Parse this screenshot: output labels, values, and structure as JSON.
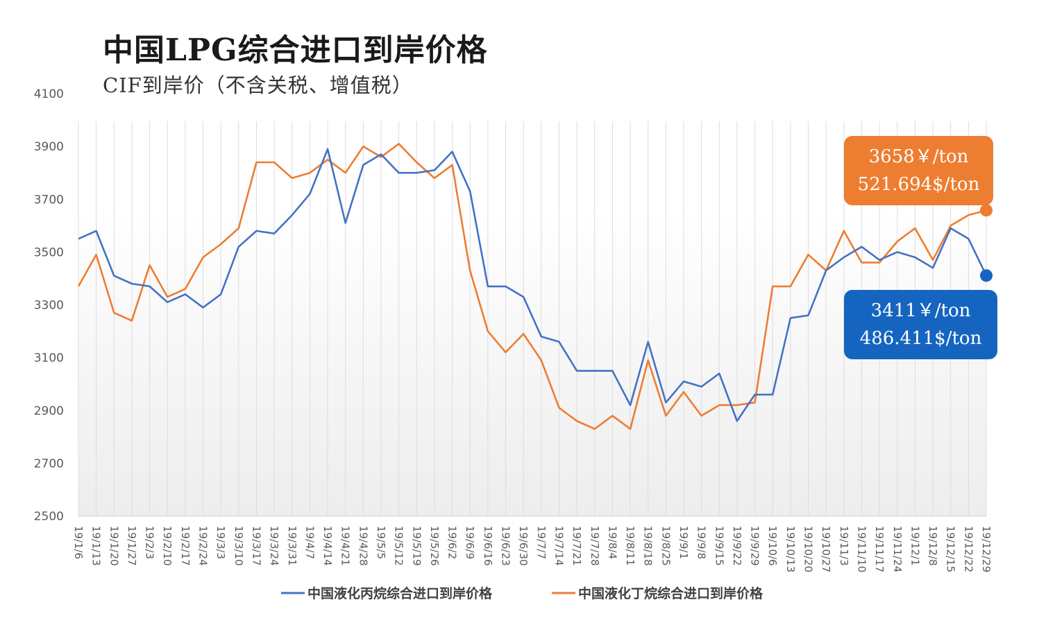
{
  "title": "中国LPG综合进口到岸价格",
  "subtitle": "CIF到岸价（不含关税、增值税）",
  "chart_data": {
    "type": "line",
    "title": "中国LPG综合进口到岸价格",
    "subtitle": "CIF到岸价（不含关税、增值税）",
    "xlabel": "",
    "ylabel": "",
    "ylim": [
      2500,
      4100
    ],
    "yticks": [
      2500,
      2700,
      2900,
      3100,
      3300,
      3500,
      3700,
      3900,
      4100
    ],
    "grid": "vertical",
    "legend_position": "bottom",
    "categories": [
      "19/1/6",
      "19/1/13",
      "19/1/20",
      "19/1/27",
      "19/2/3",
      "19/2/10",
      "19/2/17",
      "19/2/24",
      "19/3/3",
      "19/3/10",
      "19/3/17",
      "19/3/24",
      "19/3/31",
      "19/4/7",
      "19/4/14",
      "19/4/21",
      "19/4/28",
      "19/5/5",
      "19/5/12",
      "19/5/19",
      "19/5/26",
      "19/6/2",
      "19/6/9",
      "19/6/16",
      "19/6/23",
      "19/6/30",
      "19/7/7",
      "19/7/14",
      "19/7/21",
      "19/7/28",
      "19/8/4",
      "19/8/11",
      "19/8/18",
      "19/8/25",
      "19/9/1",
      "19/9/8",
      "19/9/15",
      "19/9/22",
      "19/9/29",
      "19/10/6",
      "19/10/13",
      "19/10/20",
      "19/10/27",
      "19/11/3",
      "19/11/10",
      "19/11/17",
      "19/11/24",
      "19/12/1",
      "19/12/8",
      "19/12/15",
      "19/12/22",
      "19/12/29"
    ],
    "series": [
      {
        "name": "中国液化丙烷综合进口到岸价格",
        "color": "#4472C4",
        "values": [
          3550,
          3580,
          3410,
          3380,
          3370,
          3310,
          3340,
          3290,
          3340,
          3520,
          3580,
          3570,
          3640,
          3720,
          3890,
          3610,
          3830,
          3870,
          3800,
          3800,
          3810,
          3880,
          3730,
          3370,
          3370,
          3330,
          3180,
          3160,
          3050,
          3050,
          3050,
          2920,
          3160,
          2930,
          3010,
          2990,
          3040,
          2860,
          2960,
          2960,
          3250,
          3260,
          3430,
          3480,
          3520,
          3470,
          3500,
          3480,
          3440,
          3590,
          3550,
          3411
        ]
      },
      {
        "name": "中国液化丁烷综合进口到岸价格",
        "color": "#ED7D31",
        "values": [
          3370,
          3490,
          3270,
          3240,
          3450,
          3330,
          3360,
          3480,
          3530,
          3590,
          3840,
          3840,
          3780,
          3800,
          3850,
          3800,
          3900,
          3860,
          3910,
          3840,
          3780,
          3830,
          3430,
          3200,
          3120,
          3190,
          3090,
          2910,
          2860,
          2830,
          2880,
          2830,
          3090,
          2880,
          2970,
          2880,
          2920,
          2920,
          2930,
          3370,
          3370,
          3490,
          3430,
          3580,
          3460,
          3460,
          3540,
          3590,
          3470,
          3600,
          3640,
          3658
        ]
      }
    ],
    "annotations": [
      {
        "series": "中国液化丁烷综合进口到岸价格",
        "color": "#ED7D31",
        "line1": "3658￥/ton",
        "line2": "521.694$/ton"
      },
      {
        "series": "中国液化丙烷综合进口到岸价格",
        "color": "#1565C0",
        "line1": "3411￥/ton",
        "line2": "486.411$/ton"
      }
    ]
  }
}
